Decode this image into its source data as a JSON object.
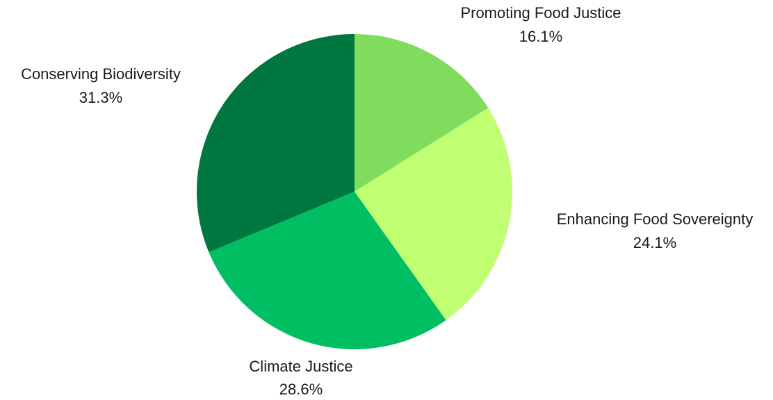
{
  "chart_data": {
    "type": "pie",
    "slices": [
      {
        "label": "Promoting Food Justice",
        "value": 16.1,
        "value_label": "16.1%",
        "color": "#80dc5c"
      },
      {
        "label": "Enhancing Food Sovereignty",
        "value": 24.1,
        "value_label": "24.1%",
        "color": "#c1ff72"
      },
      {
        "label": "Climate Justice",
        "value": 28.6,
        "value_label": "28.6%",
        "color": "#00bf63"
      },
      {
        "label": "Conserving Biodiversity",
        "value": 31.3,
        "value_label": "31.3%",
        "color": "#00773e"
      }
    ],
    "start": "12 o'clock",
    "direction": "clockwise",
    "legend": "none",
    "labels": "outside"
  }
}
